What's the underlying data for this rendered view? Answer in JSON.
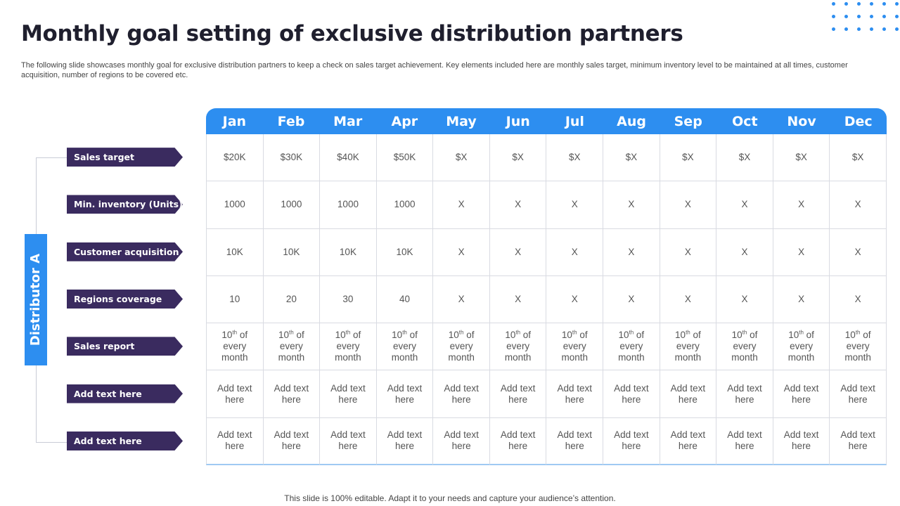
{
  "title": "Monthly goal setting of exclusive distribution partners",
  "subtitle": "The following slide showcases monthly goal for exclusive distribution partners to keep a check on sales target achievement. Key elements included here are monthly sales target, minimum inventory level to be maintained at all times, customer acquisition, number of regions to be covered etc.",
  "distributor_label": "Distributor A",
  "months": [
    "Jan",
    "Feb",
    "Mar",
    "Apr",
    "May",
    "Jun",
    "Jul",
    "Aug",
    "Sep",
    "Oct",
    "Nov",
    "Dec"
  ],
  "rows": [
    {
      "label": "Sales target",
      "cells": [
        "$20K",
        "$30K",
        "$40K",
        "$50K",
        "$X",
        "$X",
        "$X",
        "$X",
        "$X",
        "$X",
        "$X",
        "$X"
      ]
    },
    {
      "label": "Min. inventory (Units)",
      "cells": [
        "1000",
        "1000",
        "1000",
        "1000",
        "X",
        "X",
        "X",
        "X",
        "X",
        "X",
        "X",
        "X"
      ]
    },
    {
      "label": "Customer acquisition",
      "cells": [
        "10K",
        "10K",
        "10K",
        "10K",
        "X",
        "X",
        "X",
        "X",
        "X",
        "X",
        "X",
        "X"
      ]
    },
    {
      "label": "Regions coverage",
      "cells": [
        "10",
        "20",
        "30",
        "40",
        "X",
        "X",
        "X",
        "X",
        "X",
        "X",
        "X",
        "X"
      ]
    },
    {
      "label": "Sales report",
      "report": {
        "num": "10",
        "sup": "th",
        "rest": " of every month"
      }
    },
    {
      "label": "Add text here",
      "cells": [
        "Add text here",
        "Add text here",
        "Add text here",
        "Add text here",
        "Add text here",
        "Add text here",
        "Add text here",
        "Add text here",
        "Add text here",
        "Add text here",
        "Add text here",
        "Add text here"
      ]
    },
    {
      "label": "Add text here",
      "cells": [
        "Add text here",
        "Add text here",
        "Add text here",
        "Add text here",
        "Add text here",
        "Add text here",
        "Add text here",
        "Add text here",
        "Add text here",
        "Add text here",
        "Add text here",
        "Add text here"
      ]
    }
  ],
  "footer": "This slide is 100% editable. Adapt it to your needs and capture your audience’s attention.",
  "colors": {
    "accent_blue": "#2d8ef0",
    "label_purple": "#3a2b5f"
  }
}
